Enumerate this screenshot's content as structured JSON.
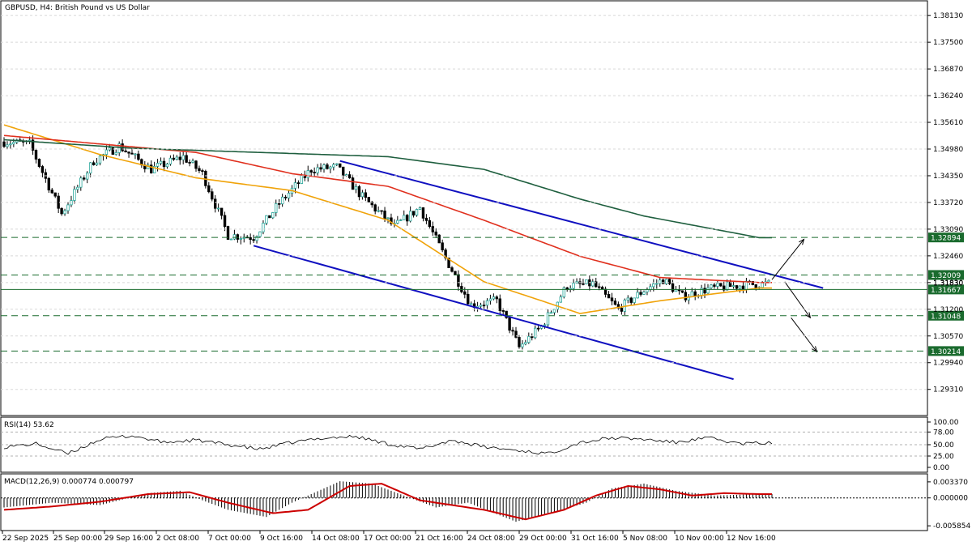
{
  "window": {
    "title": "GBPUSD, H4:  British Pound vs US Dollar",
    "symbol": "GBPUSD",
    "timeframe": "H4"
  },
  "colors": {
    "bull_candle": "#26a69a",
    "bear_candle": "#000000",
    "ma_fast": "#f0a30a",
    "ma_mid": "#e0301e",
    "ma_slow": "#1f5f3f",
    "channel": "#1010c0",
    "hline": "#1a6b2e",
    "rsi_line": "#000000",
    "macd_hist": "#000000",
    "macd_signal": "#cc0000",
    "label_bg": "#1a6b2e",
    "label_text": "#ffffff"
  },
  "chart_data": [
    {
      "type": "candlestick",
      "title": "GBPUSD, H4:  British Pound vs US Dollar",
      "xlabel": "",
      "ylabel": "",
      "ylim": [
        1.2875,
        1.3842
      ],
      "y_ticks": [
        "1.38130",
        "1.37500",
        "1.36870",
        "1.36240",
        "1.35610",
        "1.34980",
        "1.34350",
        "1.33720",
        "1.33090",
        "1.32460",
        "1.31830",
        "1.31200",
        "1.30570",
        "1.29940",
        "1.29310"
      ],
      "x_ticks": [
        "22 Sep 2025",
        "25 Sep 00:00",
        "29 Sep 16:00",
        "2 Oct 08:00",
        "7 Oct 00:00",
        "9 Oct 16:00",
        "14 Oct 08:00",
        "17 Oct 00:00",
        "21 Oct 16:00",
        "24 Oct 08:00",
        "29 Oct 00:00",
        "31 Oct 16:00",
        "5 Nov 08:00",
        "10 Nov 00:00",
        "12 Nov 16:00"
      ],
      "price_anchors": {
        "bar_index": [
          0,
          8,
          18,
          28,
          36,
          46,
          56,
          62,
          70,
          78,
          86,
          96,
          104,
          112,
          122,
          130,
          138,
          146,
          154,
          161,
          168,
          176,
          184,
          192,
          200,
          206,
          212,
          220,
          228,
          236
        ],
        "close": [
          1.3515,
          1.351,
          1.3345,
          1.347,
          1.3505,
          1.345,
          1.348,
          1.344,
          1.3295,
          1.329,
          1.337,
          1.345,
          1.3455,
          1.3385,
          1.3315,
          1.336,
          1.324,
          1.313,
          1.314,
          1.303,
          1.308,
          1.3175,
          1.318,
          1.312,
          1.3165,
          1.319,
          1.315,
          1.3168,
          1.3175,
          1.318
        ]
      },
      "moving_averages": [
        {
          "anchors_index": [
            0,
            30,
            60,
            90,
            120,
            150,
            180,
            205,
            236
          ],
          "values": [
            1.3555,
            1.3485,
            1.343,
            1.34,
            1.333,
            1.3185,
            1.311,
            1.314,
            1.317
          ]
        },
        {
          "anchors_index": [
            0,
            30,
            60,
            90,
            120,
            150,
            180,
            205,
            236
          ],
          "values": [
            1.353,
            1.351,
            1.349,
            1.344,
            1.341,
            1.333,
            1.3245,
            1.3195,
            1.3183
          ]
        },
        {
          "anchors_index": [
            0,
            40,
            80,
            120,
            150,
            180,
            200,
            236
          ],
          "values": [
            1.352,
            1.35,
            1.349,
            1.348,
            1.345,
            1.338,
            1.334,
            1.3289
          ]
        }
      ],
      "channel_lines": [
        {
          "from": [
            105,
            1.347
          ],
          "to": [
            256,
            1.317
          ]
        },
        {
          "from": [
            78,
            1.327
          ],
          "to": [
            228,
            1.2955
          ]
        }
      ],
      "levels": [
        {
          "value": 1.32894,
          "label": "1.32894",
          "style": "dashed"
        },
        {
          "value": 1.32009,
          "label": "1.32009",
          "style": "dashed"
        },
        {
          "value": 1.31667,
          "label": "1.31667",
          "style": "solid"
        },
        {
          "value": 1.31048,
          "label": "1.31048",
          "style": "dashed"
        },
        {
          "value": 1.30214,
          "label": "1.30214",
          "style": "dashed"
        }
      ],
      "current_price_label": "1.31830",
      "arrows": [
        {
          "from": [
            240,
            1.319
          ],
          "to": [
            250,
            1.3285
          ]
        },
        {
          "from": [
            244,
            1.3185
          ],
          "to": [
            252,
            1.31
          ]
        },
        {
          "from": [
            246,
            1.31
          ],
          "to": [
            254,
            1.302
          ]
        }
      ],
      "total_bars": 240
    },
    {
      "type": "line",
      "title": "RSI(14) 53.62",
      "ylim": [
        0,
        100
      ],
      "y_ticks": [
        "100.00",
        "78.00",
        "50.00",
        "25.00",
        "0.00"
      ],
      "levels": [
        78,
        50,
        25
      ],
      "anchors_index": [
        0,
        10,
        20,
        30,
        40,
        50,
        60,
        70,
        80,
        90,
        100,
        110,
        120,
        130,
        140,
        150,
        160,
        170,
        180,
        190,
        200,
        210,
        220,
        230,
        236
      ],
      "values": [
        45,
        52,
        30,
        62,
        70,
        55,
        60,
        50,
        40,
        55,
        65,
        68,
        52,
        40,
        60,
        45,
        38,
        30,
        55,
        65,
        62,
        55,
        65,
        52,
        53.62
      ]
    },
    {
      "type": "bar",
      "title": "MACD(12,26,9) 0.000774 0.000797",
      "ylim": [
        -0.006,
        0.0042
      ],
      "y_ticks": [
        "0.003370",
        "0.000000",
        "-0.005854"
      ],
      "hist_anchors_index": [
        0,
        15,
        30,
        45,
        55,
        62,
        70,
        82,
        90,
        105,
        115,
        125,
        135,
        145,
        160,
        172,
        182,
        190,
        200,
        210,
        222,
        236
      ],
      "hist_values": [
        -0.002,
        -0.001,
        -0.0015,
        0.001,
        0.0015,
        -0.0005,
        -0.0025,
        -0.004,
        -0.001,
        0.0035,
        0.003,
        0.0005,
        -0.002,
        -0.001,
        -0.005,
        -0.003,
        -0.001,
        0.002,
        0.003,
        0.0015,
        0.0005,
        0.0008
      ],
      "signal_anchors_index": [
        0,
        15,
        30,
        45,
        58,
        70,
        84,
        95,
        108,
        118,
        130,
        140,
        150,
        163,
        175,
        185,
        195,
        205,
        215,
        225,
        236
      ],
      "signal_values": [
        -0.0025,
        -0.0018,
        -0.0008,
        0.0008,
        0.0012,
        -0.001,
        -0.0032,
        -0.0025,
        0.0025,
        0.003,
        -0.0005,
        -0.0015,
        -0.0025,
        -0.0045,
        -0.0025,
        0.0005,
        0.0025,
        0.0018,
        0.0005,
        0.001,
        0.0008
      ]
    }
  ]
}
